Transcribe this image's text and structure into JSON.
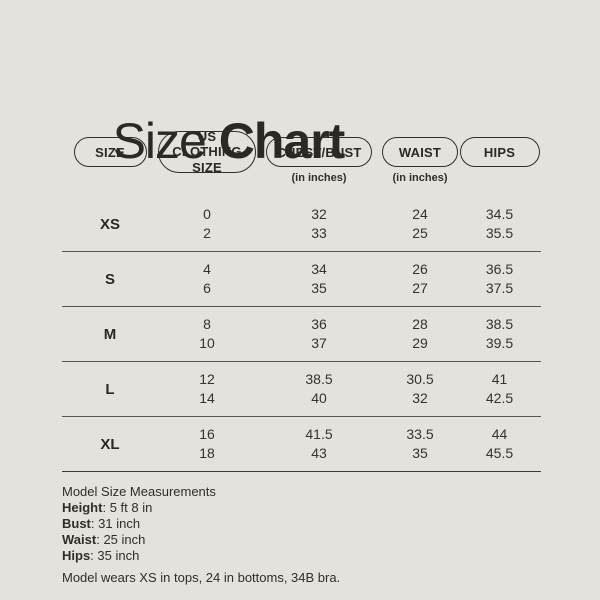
{
  "colors": {
    "background": "#e3e2dd",
    "text": "#2f2e2a",
    "pill_border": "#302f2a",
    "divider": "#56554e"
  },
  "title": {
    "light": "Size ",
    "bold": "Chart"
  },
  "table": {
    "columns": [
      {
        "label": "SIZE",
        "sub": ""
      },
      {
        "label": "US CLOTHING SIZE",
        "sub": ""
      },
      {
        "label": "CHEST/BUST",
        "sub": "(in inches)"
      },
      {
        "label": "WAIST",
        "sub": "(in inches)"
      },
      {
        "label": "HIPS",
        "sub": ""
      }
    ],
    "rows": [
      {
        "size": "XS",
        "us": [
          "0",
          "2"
        ],
        "chest": [
          "32",
          "33"
        ],
        "waist": [
          "24",
          "25"
        ],
        "hips": [
          "34.5",
          "35.5"
        ]
      },
      {
        "size": "S",
        "us": [
          "4",
          "6"
        ],
        "chest": [
          "34",
          "35"
        ],
        "waist": [
          "26",
          "27"
        ],
        "hips": [
          "36.5",
          "37.5"
        ]
      },
      {
        "size": "M",
        "us": [
          "8",
          "10"
        ],
        "chest": [
          "36",
          "37"
        ],
        "waist": [
          "28",
          "29"
        ],
        "hips": [
          "38.5",
          "39.5"
        ]
      },
      {
        "size": "L",
        "us": [
          "12",
          "14"
        ],
        "chest": [
          "38.5",
          "40"
        ],
        "waist": [
          "30.5",
          "32"
        ],
        "hips": [
          "41",
          "42.5"
        ]
      },
      {
        "size": "XL",
        "us": [
          "16",
          "18"
        ],
        "chest": [
          "41.5",
          "43"
        ],
        "waist": [
          "33.5",
          "35"
        ],
        "hips": [
          "44",
          "45.5"
        ]
      }
    ]
  },
  "footer": {
    "heading": "Model Size Measurements",
    "separator": ": ",
    "measurements": [
      {
        "label": "Height",
        "value": "5 ft 8 in"
      },
      {
        "label": "Bust",
        "value": "31 inch"
      },
      {
        "label": "Waist",
        "value": "25 inch"
      },
      {
        "label": "Hips",
        "value": "35 inch"
      }
    ],
    "note": "Model wears XS in tops, 24 in bottoms, 34B bra."
  },
  "chart_data": {
    "type": "table",
    "title": "Size Chart",
    "columns": [
      "SIZE",
      "US CLOTHING SIZE",
      "CHEST/BUST (in inches)",
      "WAIST (in inches)",
      "HIPS"
    ],
    "rows": [
      [
        "XS",
        "0 / 2",
        "32 / 33",
        "24 / 25",
        "34.5 / 35.5"
      ],
      [
        "S",
        "4 / 6",
        "34 / 35",
        "26 / 27",
        "36.5 / 37.5"
      ],
      [
        "M",
        "8 / 10",
        "36 / 37",
        "28 / 29",
        "38.5 / 39.5"
      ],
      [
        "L",
        "12 / 14",
        "38.5 / 40",
        "30.5 / 32",
        "41 / 42.5"
      ],
      [
        "XL",
        "16 / 18",
        "41.5 / 43",
        "33.5 / 35",
        "44 / 45.5"
      ]
    ],
    "annotations": [
      "Model Size Measurements",
      "Height: 5 ft 8 in",
      "Bust: 31 inch",
      "Waist: 25 inch",
      "Hips: 35 inch",
      "Model wears XS in tops, 24 in bottoms, 34B bra."
    ]
  }
}
